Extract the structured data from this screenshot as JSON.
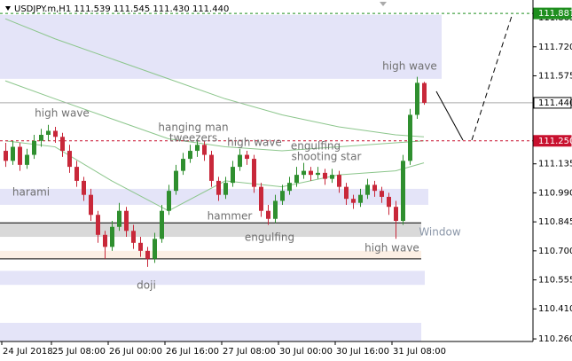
{
  "chart_data": {
    "type": "candlestick",
    "title": "USDJPY.m,H1  111.539 111.545 111.430 111.440",
    "ylim": [
      110.247,
      111.954
    ],
    "yticks": [
      111.865,
      {
        "value": 111.72,
        "label": "111.720"
      },
      111.575,
      111.135,
      {
        "value": 110.99,
        "label": "110.990"
      },
      110.845,
      {
        "value": 110.7,
        "label": "110.700"
      },
      110.555,
      {
        "value": 110.41,
        "label": "110.410"
      },
      {
        "value": 110.26,
        "label": "110.260"
      }
    ],
    "xticks": [
      {
        "value": 0,
        "label": "24 Jul 2018"
      },
      {
        "value": 7,
        "label": "25 Jul 08:00"
      },
      {
        "value": 15,
        "label": "26 Jul 00:00"
      },
      {
        "value": 23,
        "label": "26 Jul 16:00"
      },
      {
        "value": 31,
        "label": "27 Jul 08:00"
      },
      {
        "value": 39,
        "label": "30 Jul 00:00"
      },
      {
        "value": 47,
        "label": "30 Jul 16:00"
      },
      {
        "value": 55,
        "label": "31 Jul 08:00"
      }
    ],
    "up_color": "#2f8f2f",
    "down_color": "#c8283a",
    "candles": [
      [
        111.2,
        111.24,
        111.12,
        111.15
      ],
      [
        111.15,
        111.25,
        111.13,
        111.22
      ],
      [
        111.22,
        111.24,
        111.1,
        111.13
      ],
      [
        111.13,
        111.21,
        111.11,
        111.18
      ],
      [
        111.18,
        111.28,
        111.16,
        111.25
      ],
      [
        111.25,
        111.31,
        111.22,
        111.28
      ],
      [
        111.28,
        111.33,
        111.25,
        111.3
      ],
      [
        111.3,
        111.32,
        111.24,
        111.27
      ],
      [
        111.27,
        111.29,
        111.17,
        111.2
      ],
      [
        111.2,
        111.23,
        111.09,
        111.12
      ],
      [
        111.12,
        111.15,
        111.02,
        111.05
      ],
      [
        111.05,
        111.07,
        110.95,
        110.98
      ],
      [
        110.98,
        111.01,
        110.85,
        110.88
      ],
      [
        110.88,
        110.9,
        110.74,
        110.78
      ],
      [
        110.78,
        110.8,
        110.66,
        110.72
      ],
      [
        110.72,
        110.85,
        110.7,
        110.82
      ],
      [
        110.82,
        110.94,
        110.8,
        110.9
      ],
      [
        110.9,
        110.92,
        110.77,
        110.8
      ],
      [
        110.8,
        110.83,
        110.71,
        110.74
      ],
      [
        110.74,
        110.77,
        110.67,
        110.7
      ],
      [
        110.7,
        110.72,
        110.62,
        110.66
      ],
      [
        110.66,
        110.79,
        110.64,
        110.76
      ],
      [
        110.76,
        110.93,
        110.74,
        110.9
      ],
      [
        110.9,
        111.03,
        110.88,
        111.0
      ],
      [
        111.0,
        111.13,
        110.98,
        111.1
      ],
      [
        111.1,
        111.19,
        111.08,
        111.16
      ],
      [
        111.16,
        111.23,
        111.14,
        111.2
      ],
      [
        111.2,
        111.26,
        111.17,
        111.23
      ],
      [
        111.23,
        111.25,
        111.15,
        111.18
      ],
      [
        111.18,
        111.2,
        111.02,
        111.05
      ],
      [
        111.05,
        111.07,
        110.95,
        110.98
      ],
      [
        110.98,
        111.07,
        110.96,
        111.04
      ],
      [
        111.04,
        111.15,
        111.02,
        111.12
      ],
      [
        111.12,
        111.21,
        111.1,
        111.18
      ],
      [
        111.18,
        111.2,
        111.13,
        111.16
      ],
      [
        111.16,
        111.18,
        110.99,
        111.02
      ],
      [
        111.02,
        111.04,
        110.87,
        110.9
      ],
      [
        110.9,
        110.93,
        110.83,
        110.86
      ],
      [
        110.86,
        110.98,
        110.84,
        110.95
      ],
      [
        110.95,
        111.03,
        110.93,
        111.0
      ],
      [
        111.0,
        111.07,
        110.98,
        111.04
      ],
      [
        111.04,
        111.12,
        111.02,
        111.08
      ],
      [
        111.08,
        111.14,
        111.06,
        111.1
      ],
      [
        111.1,
        111.12,
        111.05,
        111.08
      ],
      [
        111.08,
        111.12,
        111.06,
        111.09
      ],
      [
        111.09,
        111.11,
        111.03,
        111.06
      ],
      [
        111.06,
        111.11,
        111.04,
        111.08
      ],
      [
        111.08,
        111.1,
        110.99,
        111.02
      ],
      [
        111.02,
        111.04,
        110.93,
        110.96
      ],
      [
        110.96,
        110.98,
        110.91,
        110.94
      ],
      [
        110.94,
        111.01,
        110.92,
        110.98
      ],
      [
        110.98,
        111.06,
        110.96,
        111.03
      ],
      [
        111.03,
        111.05,
        110.97,
        111.0
      ],
      [
        111.0,
        111.02,
        110.94,
        110.97
      ],
      [
        110.97,
        110.99,
        110.88,
        110.92
      ],
      [
        110.92,
        110.95,
        110.76,
        110.85
      ],
      [
        110.85,
        111.18,
        110.83,
        111.15
      ],
      [
        111.15,
        111.41,
        111.13,
        111.38
      ],
      [
        111.38,
        111.57,
        111.36,
        111.54
      ],
      [
        111.539,
        111.545,
        111.43,
        111.44
      ]
    ],
    "series": [
      {
        "color": "#8cc68c",
        "x": [
          0,
          7,
          15,
          23,
          31,
          39,
          47,
          55,
          59
        ],
        "values": [
          111.86,
          111.76,
          111.66,
          111.56,
          111.46,
          111.38,
          111.32,
          111.28,
          111.27
        ]
      },
      {
        "color": "#8cc68c",
        "x": [
          0,
          7,
          15,
          23,
          31,
          39,
          47,
          55,
          59
        ],
        "values": [
          111.55,
          111.46,
          111.36,
          111.26,
          111.22,
          111.2,
          111.22,
          111.24,
          111.25
        ]
      },
      {
        "color": "#8cc68c",
        "x": [
          0,
          7,
          15,
          23,
          31,
          39,
          47,
          55,
          59
        ],
        "values": [
          111.25,
          111.22,
          111.05,
          110.9,
          111.05,
          111.02,
          111.08,
          111.1,
          111.14
        ]
      }
    ],
    "zones": [
      {
        "top": 111.88,
        "bottom": 111.56,
        "color": "#e4e4f8"
      },
      {
        "top": 111.01,
        "bottom": 110.93,
        "color": "#e4e4f8"
      },
      {
        "top": 110.84,
        "bottom": 110.77,
        "color": "#d9d9d9"
      },
      {
        "top": 110.7,
        "bottom": 110.66,
        "color": "#fcefe4"
      },
      {
        "top": 110.6,
        "bottom": 110.53,
        "color": "#e4e4f8"
      },
      {
        "top": 110.34,
        "bottom": 110.25,
        "color": "#e4e4f8"
      }
    ],
    "price_lines": [
      {
        "value": 111.887,
        "color": "#1f8f1f",
        "dashed": true
      },
      {
        "value": {
          "value": 111.44,
          "label": "111.440"
        },
        "color": "#aaaaaa",
        "dashed": false
      },
      {
        "value": {
          "value": 111.25,
          "label": "111.250"
        },
        "color": "#c8102e",
        "dashed": true
      }
    ],
    "annotations": [
      "high wave",
      "high wave",
      "hanging man",
      "tweezers",
      "high wave",
      "engulfing",
      "shooting star",
      "harami",
      "hammer",
      "engulfing",
      "Window",
      "high wave",
      "doji"
    ]
  }
}
